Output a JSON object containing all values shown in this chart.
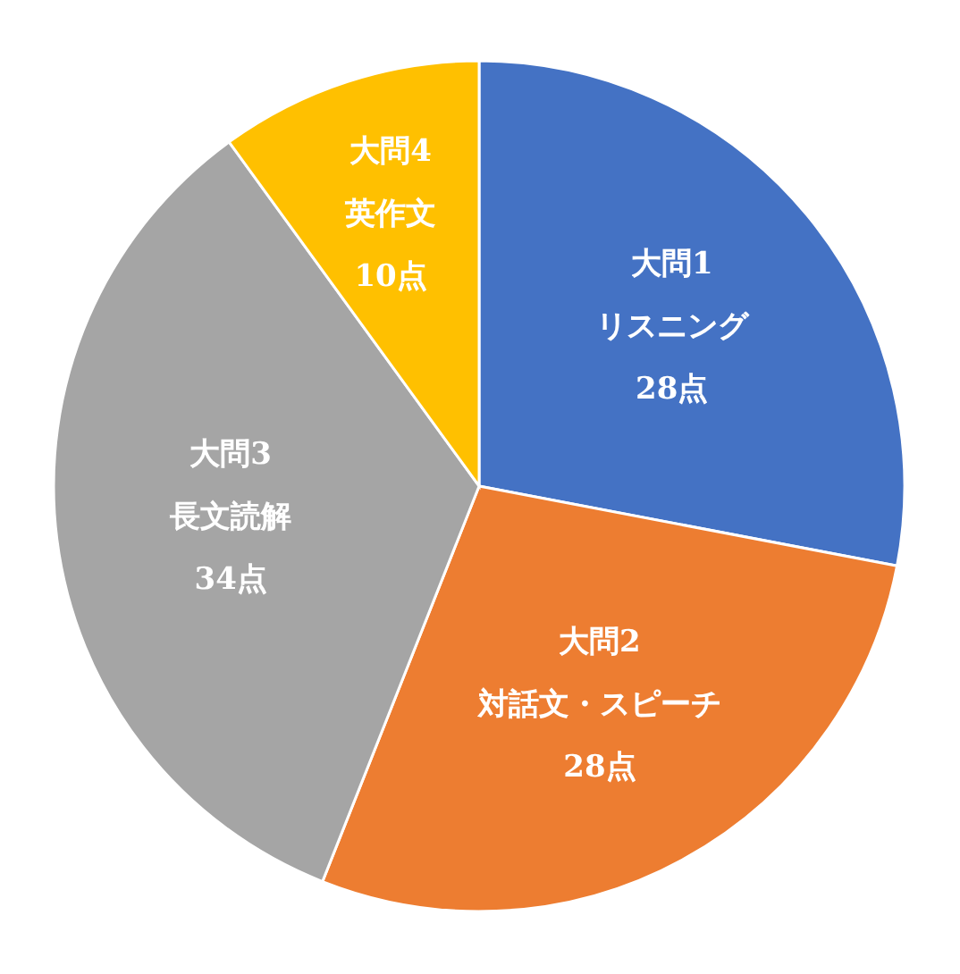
{
  "chart_data": {
    "type": "pie",
    "categories": [
      "大問1\nリスニング",
      "大問2\n対話文・スピーチ",
      "大問3\n長文読解",
      "大問4\n英作文"
    ],
    "values": [
      28,
      28,
      34,
      10
    ],
    "value_labels": [
      "28点",
      "28点",
      "34点",
      "10点"
    ],
    "colors": [
      "#4472c4",
      "#ed7d31",
      "#a5a5a5",
      "#ffc000"
    ],
    "legend": false
  }
}
